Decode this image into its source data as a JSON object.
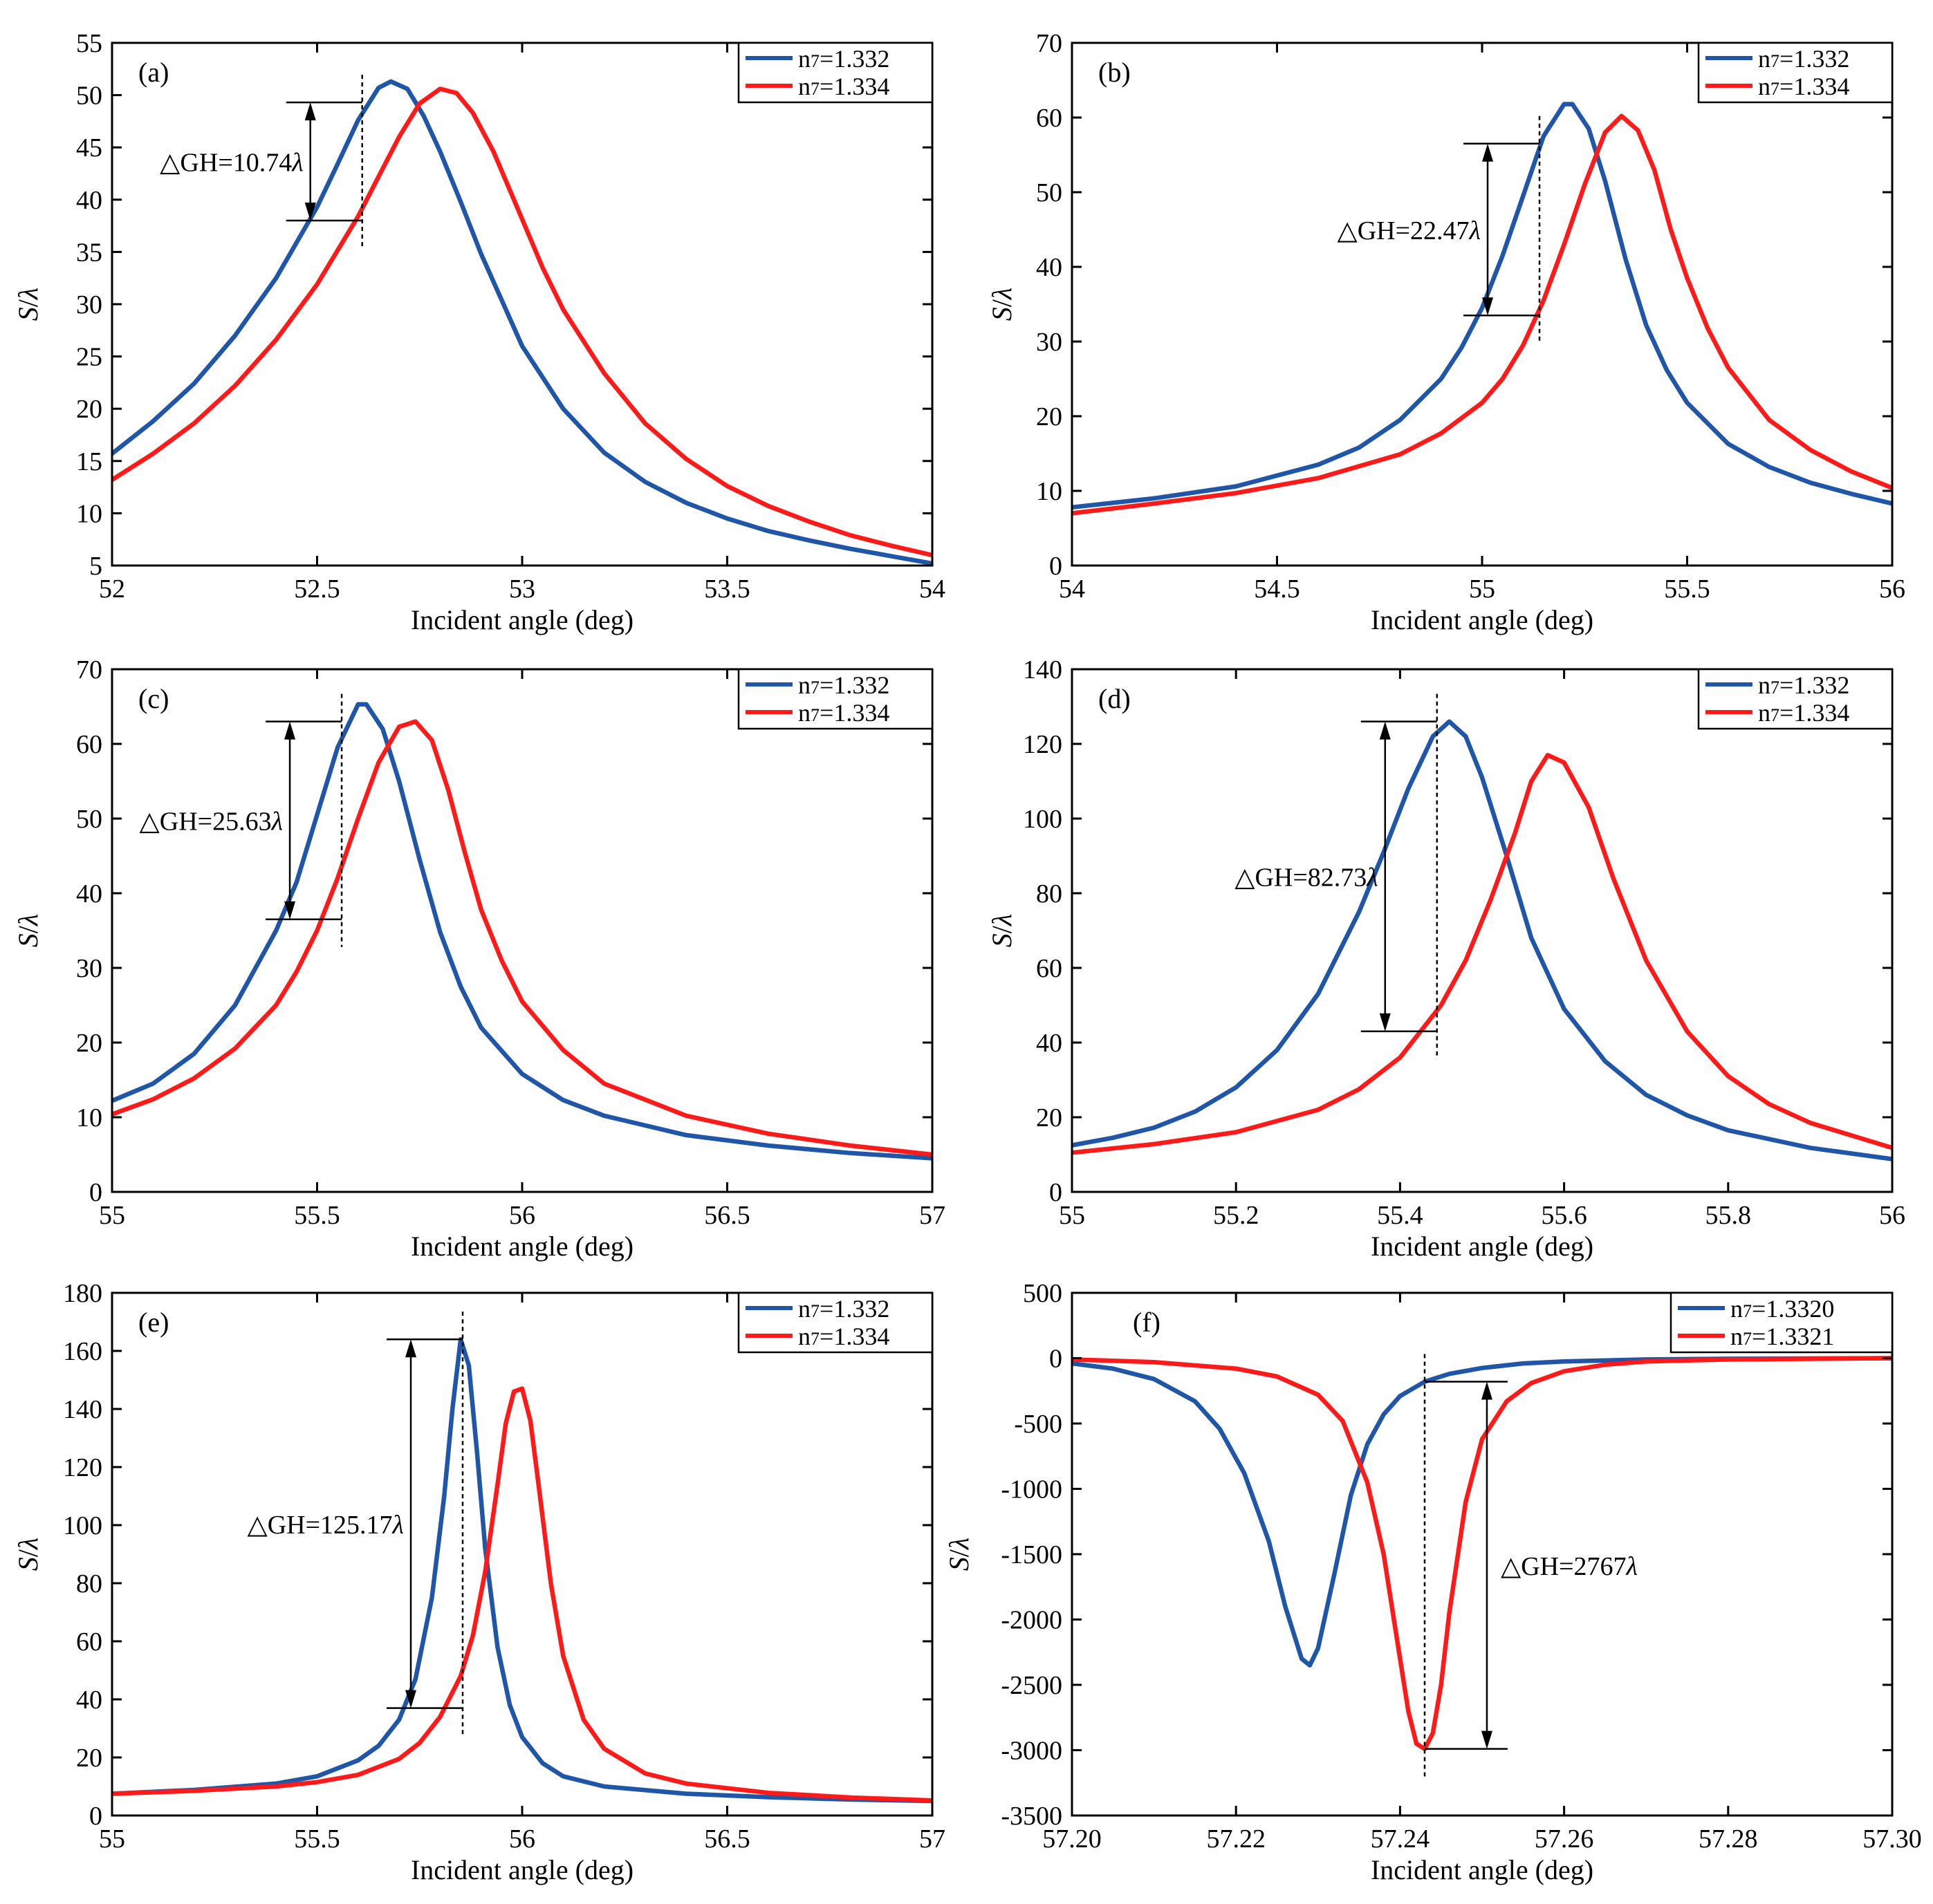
{
  "figure": {
    "colors": {
      "blue": "#1f56a8",
      "red": "#ff1a1a",
      "axis": "#000000"
    },
    "y_label": "S/λ",
    "x_label": "Incident angle (deg)"
  },
  "chart_data": [
    {
      "panel": "(a)",
      "type": "line",
      "xlabel": "Incident angle (deg)",
      "ylabel": "S/λ",
      "xlim": [
        52,
        54
      ],
      "ylim": [
        5,
        55
      ],
      "xticks": [
        52,
        52.5,
        53,
        53.5,
        54
      ],
      "xtick_labels": [
        "52",
        "52.5",
        "53",
        "53.5",
        "54"
      ],
      "yticks": [
        5,
        10,
        15,
        20,
        25,
        30,
        35,
        40,
        45,
        50,
        55
      ],
      "ytick_labels": [
        "5",
        "10",
        "15",
        "20",
        "25",
        "30",
        "35",
        "40",
        "45",
        "50",
        "55"
      ],
      "legend_position": "top-right",
      "series": [
        {
          "name": "n₇=1.332",
          "color": "blue",
          "x": [
            52,
            52.1,
            52.2,
            52.3,
            52.4,
            52.5,
            52.55,
            52.6,
            52.65,
            52.68,
            52.72,
            52.76,
            52.8,
            52.85,
            52.9,
            53,
            53.1,
            53.2,
            53.3,
            53.4,
            53.5,
            53.6,
            53.7,
            53.8,
            53.9,
            54
          ],
          "y": [
            15.7,
            18.8,
            22.4,
            27,
            32.5,
            39.3,
            43.4,
            47.6,
            50.7,
            51.3,
            50.6,
            48,
            44.6,
            39.8,
            34.8,
            26,
            20,
            15.8,
            13,
            11,
            9.5,
            8.3,
            7.4,
            6.6,
            5.9,
            5.2
          ]
        },
        {
          "name": "n₇=1.334",
          "color": "red",
          "x": [
            52,
            52.1,
            52.2,
            52.3,
            52.4,
            52.5,
            52.6,
            52.65,
            52.7,
            52.75,
            52.8,
            52.84,
            52.88,
            52.93,
            52.98,
            53.05,
            53.1,
            53.2,
            53.3,
            53.4,
            53.5,
            53.6,
            53.7,
            53.8,
            53.9,
            54
          ],
          "y": [
            13.2,
            15.7,
            18.6,
            22.2,
            26.6,
            31.9,
            38.4,
            42.2,
            46,
            49.2,
            50.6,
            50.2,
            48.3,
            44.6,
            40,
            33.5,
            29.5,
            23.4,
            18.6,
            15.2,
            12.6,
            10.7,
            9.2,
            7.9,
            6.9,
            6
          ]
        }
      ],
      "marker": {
        "x": 52.61,
        "y_top": 49.3,
        "y_bottom": 38.0,
        "label": "△GH=10.74λ"
      }
    },
    {
      "panel": "(b)",
      "type": "line",
      "xlabel": "Incident angle (deg)",
      "ylabel": "S/λ",
      "xlim": [
        54,
        56
      ],
      "ylim": [
        0,
        70
      ],
      "xticks": [
        54,
        54.5,
        55,
        55.5,
        56
      ],
      "xtick_labels": [
        "54",
        "54.5",
        "55",
        "55.5",
        "56"
      ],
      "yticks": [
        0,
        10,
        20,
        30,
        40,
        50,
        60,
        70
      ],
      "ytick_labels": [
        "0",
        "10",
        "20",
        "30",
        "40",
        "50",
        "60",
        "70"
      ],
      "legend_position": "top-right",
      "series": [
        {
          "name": "n₇=1.332",
          "color": "blue",
          "x": [
            54,
            54.2,
            54.4,
            54.6,
            54.7,
            54.8,
            54.9,
            54.95,
            55,
            55.05,
            55.1,
            55.15,
            55.2,
            55.22,
            55.26,
            55.3,
            55.35,
            55.4,
            55.45,
            55.5,
            55.6,
            55.7,
            55.8,
            55.9,
            56
          ],
          "y": [
            7.8,
            9,
            10.6,
            13.5,
            15.8,
            19.5,
            25,
            29.2,
            34.5,
            41.5,
            49.5,
            57.5,
            61.8,
            61.8,
            58.5,
            51.5,
            41,
            32.2,
            26.2,
            21.8,
            16.3,
            13.2,
            11.1,
            9.6,
            8.3
          ]
        },
        {
          "name": "n₇=1.334",
          "color": "red",
          "x": [
            54,
            54.2,
            54.4,
            54.6,
            54.8,
            54.9,
            55,
            55.05,
            55.1,
            55.15,
            55.2,
            55.25,
            55.3,
            55.34,
            55.38,
            55.42,
            55.46,
            55.5,
            55.55,
            55.6,
            55.7,
            55.8,
            55.9,
            56
          ],
          "y": [
            7,
            8.3,
            9.7,
            11.7,
            14.9,
            17.7,
            21.8,
            25,
            29.5,
            35.5,
            43,
            51,
            58,
            60.2,
            58.3,
            53,
            45,
            38.5,
            31.8,
            26.5,
            19.5,
            15.5,
            12.6,
            10.4
          ]
        }
      ],
      "marker": {
        "x": 55.14,
        "y_top": 56.5,
        "y_bottom": 33.5,
        "label": "△GH=22.47λ"
      }
    },
    {
      "panel": "(c)",
      "type": "line",
      "xlabel": "Incident angle (deg)",
      "ylabel": "S/λ",
      "xlim": [
        55,
        57
      ],
      "ylim": [
        0,
        70
      ],
      "xticks": [
        55,
        55.5,
        56,
        56.5,
        57
      ],
      "xtick_labels": [
        "55",
        "55.5",
        "56",
        "56.5",
        "57"
      ],
      "yticks": [
        0,
        10,
        20,
        30,
        40,
        50,
        60,
        70
      ],
      "ytick_labels": [
        "0",
        "10",
        "20",
        "30",
        "40",
        "50",
        "60",
        "70"
      ],
      "legend_position": "top-right",
      "series": [
        {
          "name": "n₇=1.332",
          "color": "blue",
          "x": [
            55,
            55.1,
            55.2,
            55.3,
            55.4,
            55.45,
            55.5,
            55.55,
            55.6,
            55.62,
            55.66,
            55.7,
            55.75,
            55.8,
            55.85,
            55.9,
            56,
            56.1,
            56.2,
            56.4,
            56.6,
            56.8,
            57
          ],
          "y": [
            12.2,
            14.5,
            18.5,
            25,
            35,
            41.5,
            50.5,
            59.5,
            65.3,
            65.3,
            62,
            55,
            44.5,
            34.8,
            27.5,
            22,
            15.8,
            12.3,
            10.2,
            7.6,
            6.2,
            5.2,
            4.5
          ]
        },
        {
          "name": "n₇=1.334",
          "color": "red",
          "x": [
            55,
            55.1,
            55.2,
            55.3,
            55.4,
            55.45,
            55.5,
            55.55,
            55.6,
            55.65,
            55.7,
            55.74,
            55.78,
            55.82,
            55.86,
            55.9,
            55.95,
            56,
            56.1,
            56.2,
            56.4,
            56.6,
            56.8,
            57
          ],
          "y": [
            10.4,
            12.4,
            15.2,
            19.2,
            25,
            29.5,
            35,
            42,
            50,
            57.5,
            62.3,
            63,
            60.5,
            53.8,
            45.5,
            37.8,
            31,
            25.5,
            19,
            14.5,
            10.2,
            7.8,
            6.2,
            5
          ]
        }
      ],
      "marker": {
        "x": 55.56,
        "y_top": 63.0,
        "y_bottom": 36.5,
        "label": "△GH=25.63λ"
      }
    },
    {
      "panel": "(d)",
      "type": "line",
      "xlabel": "Incident angle (deg)",
      "ylabel": "S/λ",
      "xlim": [
        55,
        56
      ],
      "ylim": [
        0,
        140
      ],
      "xticks": [
        55,
        55.2,
        55.4,
        55.6,
        55.8,
        56
      ],
      "xtick_labels": [
        "55",
        "55.2",
        "55.4",
        "55.6",
        "55.8",
        "56"
      ],
      "yticks": [
        0,
        20,
        40,
        60,
        80,
        100,
        120,
        140
      ],
      "ytick_labels": [
        "0",
        "20",
        "40",
        "60",
        "80",
        "100",
        "120",
        "140"
      ],
      "legend_position": "top-right",
      "series": [
        {
          "name": "n₇=1.332",
          "color": "blue",
          "x": [
            55,
            55.05,
            55.1,
            55.15,
            55.2,
            55.25,
            55.3,
            55.35,
            55.38,
            55.41,
            55.44,
            55.46,
            55.48,
            55.5,
            55.53,
            55.56,
            55.6,
            55.65,
            55.7,
            55.75,
            55.8,
            55.9,
            56
          ],
          "y": [
            12.5,
            14.5,
            17.2,
            21.5,
            28,
            38,
            53,
            75,
            91,
            108,
            122,
            126,
            122,
            111,
            90,
            68,
            49,
            35,
            26,
            20.5,
            16.5,
            11.8,
            8.8
          ]
        },
        {
          "name": "n₇=1.334",
          "color": "red",
          "x": [
            55,
            55.1,
            55.2,
            55.3,
            55.35,
            55.4,
            55.45,
            55.48,
            55.51,
            55.54,
            55.56,
            55.58,
            55.6,
            55.63,
            55.66,
            55.7,
            55.75,
            55.8,
            55.85,
            55.9,
            56
          ],
          "y": [
            10.5,
            12.8,
            16,
            22,
            27.5,
            36,
            50,
            62,
            78,
            96,
            110,
            117,
            115,
            103,
            84,
            62,
            43,
            31,
            23.5,
            18.5,
            11.8
          ]
        }
      ],
      "marker": {
        "x": 55.445,
        "y_top": 126,
        "y_bottom": 43,
        "label": "△GH=82.73λ"
      }
    },
    {
      "panel": "(e)",
      "type": "line",
      "xlabel": "Incident angle (deg)",
      "ylabel": "S/λ",
      "xlim": [
        55,
        57
      ],
      "ylim": [
        0,
        180
      ],
      "xticks": [
        55,
        55.5,
        56,
        56.5,
        57
      ],
      "xtick_labels": [
        "55",
        "55.5",
        "56",
        "56.5",
        "57"
      ],
      "yticks": [
        0,
        20,
        40,
        60,
        80,
        100,
        120,
        140,
        160,
        180
      ],
      "ytick_labels": [
        "0",
        "20",
        "40",
        "60",
        "80",
        "100",
        "120",
        "140",
        "160",
        "180"
      ],
      "legend_position": "top-right",
      "series": [
        {
          "name": "n₇=1.332",
          "color": "blue",
          "x": [
            55,
            55.2,
            55.4,
            55.5,
            55.6,
            55.65,
            55.7,
            55.74,
            55.78,
            55.81,
            55.83,
            55.85,
            55.87,
            55.89,
            55.91,
            55.94,
            55.97,
            56,
            56.05,
            56.1,
            56.2,
            56.4,
            56.6,
            56.8,
            57
          ],
          "y": [
            7.5,
            8.8,
            11,
            13.5,
            19,
            24,
            33,
            47,
            75,
            110,
            140,
            164,
            155,
            125,
            92,
            58,
            38,
            27,
            18,
            13.5,
            10,
            7.5,
            6.3,
            5.5,
            5
          ]
        },
        {
          "name": "n₇=1.334",
          "color": "red",
          "x": [
            55,
            55.2,
            55.4,
            55.5,
            55.6,
            55.7,
            55.75,
            55.8,
            55.85,
            55.88,
            55.91,
            55.94,
            55.96,
            55.98,
            56,
            56.02,
            56.04,
            56.07,
            56.1,
            56.15,
            56.2,
            56.3,
            56.4,
            56.6,
            56.8,
            57
          ],
          "y": [
            7.5,
            8.5,
            10,
            11.5,
            14,
            19.5,
            25,
            34,
            48,
            62,
            84,
            114,
            135,
            146,
            147,
            136,
            114,
            80,
            55,
            33,
            23,
            14.5,
            11,
            7.8,
            6.2,
            5.2
          ]
        }
      ],
      "marker": {
        "x": 55.855,
        "y_top": 164,
        "y_bottom": 37,
        "label": "△GH=125.17λ"
      }
    },
    {
      "panel": "(f)",
      "type": "line",
      "xlabel": "Incident angle (deg)",
      "ylabel": "S/λ",
      "xlim": [
        57.2,
        57.3
      ],
      "ylim": [
        -3500,
        500
      ],
      "xticks": [
        57.2,
        57.22,
        57.24,
        57.26,
        57.28,
        57.3
      ],
      "xtick_labels": [
        "57.20",
        "57.22",
        "57.24",
        "57.26",
        "57.28",
        "57.30"
      ],
      "yticks": [
        500,
        0,
        -500,
        -1000,
        -1500,
        -2000,
        -2500,
        -3000,
        -3500
      ],
      "ytick_labels": [
        "500",
        "0",
        "-500",
        "-1000",
        "-1500",
        "-2000",
        "-2500",
        "-3000",
        "-3500"
      ],
      "legend_position": "top-right",
      "series": [
        {
          "name": "n₇=1.3320",
          "color": "blue",
          "x": [
            57.2,
            57.205,
            57.21,
            57.215,
            57.218,
            57.221,
            57.224,
            57.226,
            57.228,
            57.229,
            57.23,
            57.232,
            57.234,
            57.236,
            57.238,
            57.24,
            57.243,
            57.246,
            57.25,
            57.255,
            57.26,
            57.27,
            57.28,
            57.3
          ],
          "y": [
            -40,
            -80,
            -160,
            -330,
            -540,
            -880,
            -1400,
            -1900,
            -2300,
            -2350,
            -2220,
            -1650,
            -1050,
            -660,
            -430,
            -290,
            -180,
            -120,
            -75,
            -40,
            -25,
            -10,
            -5,
            0
          ]
        },
        {
          "name": "n₇=1.3321",
          "color": "red",
          "x": [
            57.2,
            57.21,
            57.22,
            57.225,
            57.23,
            57.233,
            57.236,
            57.238,
            57.24,
            57.241,
            57.242,
            57.243,
            57.244,
            57.245,
            57.246,
            57.248,
            57.25,
            57.253,
            57.256,
            57.26,
            57.265,
            57.27,
            57.28,
            57.3
          ],
          "y": [
            -10,
            -30,
            -80,
            -140,
            -280,
            -480,
            -950,
            -1500,
            -2300,
            -2700,
            -2950,
            -2990,
            -2870,
            -2500,
            -1950,
            -1100,
            -620,
            -330,
            -190,
            -100,
            -50,
            -25,
            -10,
            0
          ]
        }
      ],
      "marker": {
        "x": 57.243,
        "y_top": -180,
        "y_bottom": -2990,
        "label": "△GH=2767λ"
      }
    }
  ]
}
